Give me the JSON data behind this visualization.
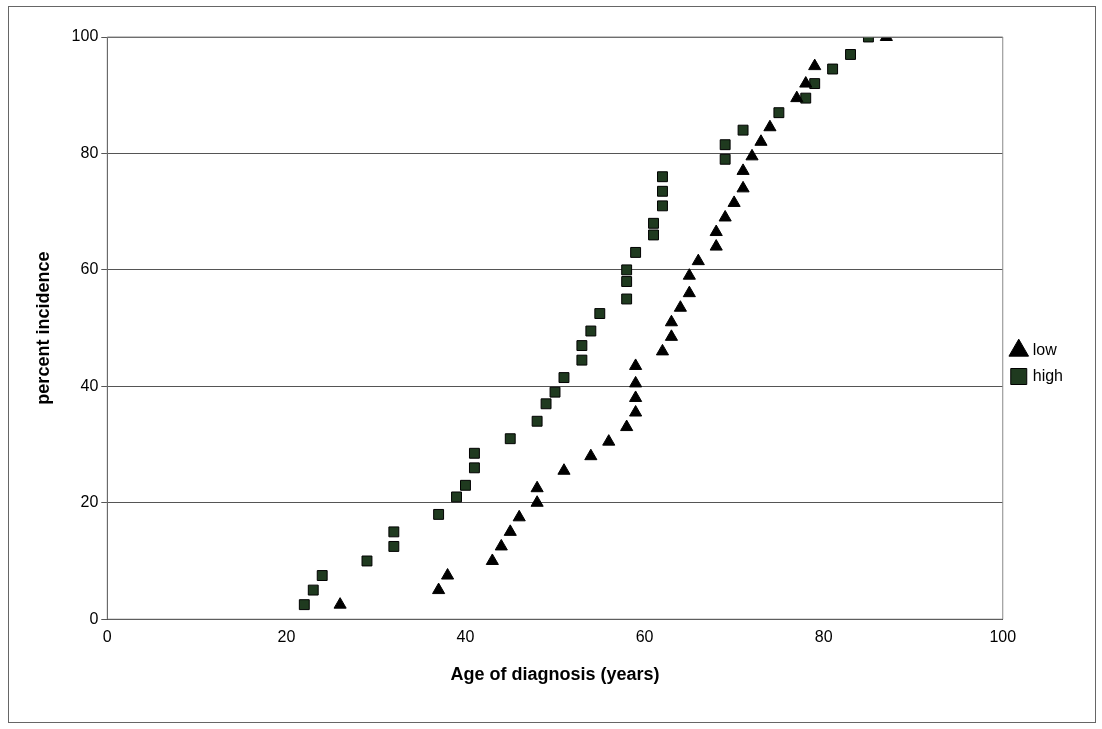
{
  "chart_data": {
    "type": "scatter",
    "xlabel": "Age of diagnosis (years)",
    "ylabel": "percent incidence",
    "xlim": [
      0,
      100
    ],
    "xticks": [
      0,
      20,
      40,
      60,
      80,
      100
    ],
    "ylim": [
      0,
      100
    ],
    "yticks": [
      0,
      20,
      40,
      60,
      80,
      100
    ],
    "grid": "y",
    "legend": "right",
    "series": [
      {
        "name": "low",
        "color": "#000000",
        "marker": "triangle",
        "x": [
          26,
          37,
          38,
          43,
          44,
          45,
          46,
          48,
          48,
          51,
          54,
          56,
          58,
          59,
          59,
          59,
          59,
          62,
          63,
          63,
          64,
          65,
          65,
          66,
          68,
          68,
          69,
          70,
          71,
          71,
          72,
          73,
          74,
          77,
          78,
          79,
          87
        ],
        "values": [
          2.5,
          5,
          7.5,
          10,
          12.5,
          15,
          17.5,
          20,
          22.5,
          25.5,
          28,
          30.5,
          33,
          35.5,
          38,
          40.5,
          43.5,
          46,
          48.5,
          51,
          53.5,
          56,
          59,
          61.5,
          64,
          66.5,
          69,
          71.5,
          74,
          77,
          79.5,
          82,
          84.5,
          89.5,
          92,
          95,
          100
        ]
      },
      {
        "name": "high",
        "color": "#1f3a1f",
        "marker": "square",
        "x": [
          22,
          23,
          24,
          29,
          32,
          32,
          37,
          39,
          40,
          41,
          41,
          45,
          48,
          49,
          50,
          51,
          53,
          53,
          54,
          55,
          58,
          58,
          58,
          59,
          61,
          61,
          62,
          62,
          62,
          69,
          69,
          71,
          75,
          78,
          79,
          81,
          83,
          85
        ],
        "values": [
          2.5,
          5,
          7.5,
          10,
          12.5,
          15,
          18,
          21,
          23,
          26,
          28.5,
          31,
          34,
          37,
          39,
          41.5,
          44.5,
          47,
          49.5,
          52.5,
          55,
          58,
          60,
          63,
          66,
          68,
          71,
          73.5,
          76,
          79,
          81.5,
          84,
          87,
          89.5,
          92,
          94.5,
          97,
          100
        ]
      }
    ]
  }
}
